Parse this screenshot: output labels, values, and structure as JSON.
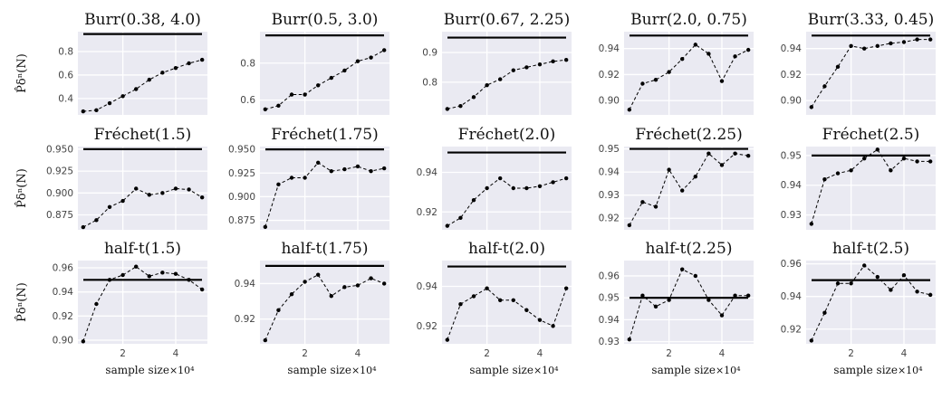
{
  "figure": {
    "ylabels": [
      "P̂δⁿ(N)",
      "P̂δⁿ(N)",
      "P̂δⁿ(N)"
    ],
    "xlabel": "sample size",
    "xscale_note": "×10⁴",
    "colors": {
      "panel_bg": "#eaeaf2",
      "grid": "#ffffff",
      "series": "#000000",
      "reference": "#000000"
    }
  },
  "chart_data": [
    {
      "type": "line",
      "title": "Burr(0.38, 4.0)",
      "reference": 0.95,
      "ylim": [
        0.26,
        0.97
      ],
      "yticks": [
        0.4,
        0.6,
        0.8
      ],
      "yticklabels": [
        "0.4",
        "0.6",
        "0.8"
      ],
      "x": [
        0.5,
        1.0,
        1.5,
        2.0,
        2.5,
        3.0,
        3.5,
        4.0,
        4.5,
        5.0
      ],
      "values": [
        0.29,
        0.3,
        0.36,
        0.42,
        0.48,
        0.56,
        0.62,
        0.66,
        0.7,
        0.73
      ],
      "xlim": [
        0.3,
        5.2
      ],
      "xticks": [
        2,
        4
      ],
      "xticklabels": [],
      "xlabel": "",
      "ylabel_row": 0
    },
    {
      "type": "line",
      "title": "Burr(0.5, 3.0)",
      "reference": 0.95,
      "ylim": [
        0.52,
        0.97
      ],
      "yticks": [
        0.6,
        0.8
      ],
      "yticklabels": [
        "0.6",
        "0.8"
      ],
      "x": [
        0.5,
        1.0,
        1.5,
        2.0,
        2.5,
        3.0,
        3.5,
        4.0,
        4.5,
        5.0
      ],
      "values": [
        0.55,
        0.57,
        0.63,
        0.63,
        0.68,
        0.72,
        0.76,
        0.81,
        0.83,
        0.87
      ],
      "xlim": [
        0.3,
        5.2
      ],
      "xticks": [
        2,
        4
      ],
      "xticklabels": [],
      "xlabel": ""
    },
    {
      "type": "line",
      "title": "Burr(0.67, 2.25)",
      "reference": 0.95,
      "ylim": [
        0.69,
        0.97
      ],
      "yticks": [
        0.8,
        0.9
      ],
      "yticklabels": [
        "0.8",
        "0.9"
      ],
      "x": [
        0.5,
        1.0,
        1.5,
        2.0,
        2.5,
        3.0,
        3.5,
        4.0,
        4.5,
        5.0
      ],
      "values": [
        0.71,
        0.72,
        0.75,
        0.79,
        0.81,
        0.84,
        0.85,
        0.86,
        0.87,
        0.875
      ],
      "xlim": [
        0.3,
        5.2
      ],
      "xticks": [
        2,
        4
      ],
      "xticklabels": [],
      "xlabel": ""
    },
    {
      "type": "line",
      "title": "Burr(2.0, 0.75)",
      "reference": 0.95,
      "ylim": [
        0.889,
        0.953
      ],
      "yticks": [
        0.9,
        0.92,
        0.94
      ],
      "yticklabels": [
        "0.90",
        "0.92",
        "0.94"
      ],
      "x": [
        0.5,
        1.0,
        1.5,
        2.0,
        2.5,
        3.0,
        3.5,
        4.0,
        4.5,
        5.0
      ],
      "values": [
        0.893,
        0.913,
        0.916,
        0.922,
        0.932,
        0.943,
        0.936,
        0.915,
        0.934,
        0.939
      ],
      "xlim": [
        0.3,
        5.2
      ],
      "xticks": [
        2,
        4
      ],
      "xticklabels": [],
      "xlabel": ""
    },
    {
      "type": "line",
      "title": "Burr(3.33, 0.45)",
      "reference": 0.95,
      "ylim": [
        0.889,
        0.953
      ],
      "yticks": [
        0.9,
        0.92,
        0.94
      ],
      "yticklabels": [
        "0.90",
        "0.92",
        "0.94"
      ],
      "x": [
        0.5,
        1.0,
        1.5,
        2.0,
        2.5,
        3.0,
        3.5,
        4.0,
        4.5,
        5.0
      ],
      "values": [
        0.895,
        0.911,
        0.926,
        0.942,
        0.94,
        0.942,
        0.944,
        0.945,
        0.947,
        0.947
      ],
      "xlim": [
        0.3,
        5.2
      ],
      "xticks": [
        2,
        4
      ],
      "xticklabels": [],
      "xlabel": ""
    },
    {
      "type": "line",
      "title": "Fréchet(1.5)",
      "reference": 0.95,
      "ylim": [
        0.858,
        0.953
      ],
      "yticks": [
        0.875,
        0.9,
        0.925,
        0.95
      ],
      "yticklabels": [
        "0.875",
        "0.900",
        "0.925",
        "0.950"
      ],
      "x": [
        0.5,
        1.0,
        1.5,
        2.0,
        2.5,
        3.0,
        3.5,
        4.0,
        4.5,
        5.0
      ],
      "values": [
        0.861,
        0.869,
        0.884,
        0.891,
        0.905,
        0.898,
        0.9,
        0.905,
        0.904,
        0.895
      ],
      "xlim": [
        0.3,
        5.2
      ],
      "xticks": [
        2,
        4
      ],
      "xticklabels": [],
      "xlabel": ""
    },
    {
      "type": "line",
      "title": "Fréchet(1.75)",
      "reference": 0.95,
      "ylim": [
        0.865,
        0.953
      ],
      "yticks": [
        0.875,
        0.9,
        0.925,
        0.95
      ],
      "yticklabels": [
        "0.875",
        "0.900",
        "0.925",
        "0.950"
      ],
      "x": [
        0.5,
        1.0,
        1.5,
        2.0,
        2.5,
        3.0,
        3.5,
        4.0,
        4.5,
        5.0
      ],
      "values": [
        0.868,
        0.913,
        0.92,
        0.92,
        0.936,
        0.927,
        0.929,
        0.932,
        0.927,
        0.93
      ],
      "xlim": [
        0.3,
        5.2
      ],
      "xticks": [
        2,
        4
      ],
      "xticklabels": [],
      "xlabel": ""
    },
    {
      "type": "line",
      "title": "Fréchet(2.0)",
      "reference": 0.95,
      "ylim": [
        0.911,
        0.953
      ],
      "yticks": [
        0.92,
        0.94
      ],
      "yticklabels": [
        "0.92",
        "0.94"
      ],
      "x": [
        0.5,
        1.0,
        1.5,
        2.0,
        2.5,
        3.0,
        3.5,
        4.0,
        4.5,
        5.0
      ],
      "values": [
        0.913,
        0.917,
        0.926,
        0.932,
        0.937,
        0.932,
        0.932,
        0.933,
        0.935,
        0.937
      ],
      "xlim": [
        0.3,
        5.2
      ],
      "xticks": [
        2,
        4
      ],
      "xticklabels": [],
      "xlabel": ""
    },
    {
      "type": "line",
      "title": "Fréchet(2.25)",
      "reference": 0.95,
      "ylim": [
        0.915,
        0.951
      ],
      "yticks": [
        0.92,
        0.93,
        0.94,
        0.95
      ],
      "yticklabels": [
        "0.92",
        "0.93",
        "0.94",
        "0.95"
      ],
      "x": [
        0.5,
        1.0,
        1.5,
        2.0,
        2.5,
        3.0,
        3.5,
        4.0,
        4.5,
        5.0
      ],
      "values": [
        0.917,
        0.927,
        0.925,
        0.941,
        0.932,
        0.938,
        0.948,
        0.943,
        0.948,
        0.947
      ],
      "xlim": [
        0.3,
        5.2
      ],
      "xticks": [
        2,
        4
      ],
      "xticklabels": [],
      "xlabel": ""
    },
    {
      "type": "line",
      "title": "Fréchet(2.5)",
      "reference": 0.95,
      "ylim": [
        0.925,
        0.953
      ],
      "yticks": [
        0.93,
        0.94,
        0.95
      ],
      "yticklabels": [
        "0.93",
        "0.94",
        "0.95"
      ],
      "x": [
        0.5,
        1.0,
        1.5,
        2.0,
        2.5,
        3.0,
        3.5,
        4.0,
        4.5,
        5.0
      ],
      "values": [
        0.927,
        0.942,
        0.944,
        0.945,
        0.949,
        0.952,
        0.945,
        0.949,
        0.948,
        0.948
      ],
      "xlim": [
        0.3,
        5.2
      ],
      "xticks": [
        2,
        4
      ],
      "xticklabels": [],
      "xlabel": ""
    },
    {
      "type": "line",
      "title": "half-t(1.5)",
      "reference": 0.95,
      "ylim": [
        0.897,
        0.966
      ],
      "yticks": [
        0.9,
        0.92,
        0.94,
        0.96
      ],
      "yticklabels": [
        "0.90",
        "0.92",
        "0.94",
        "0.96"
      ],
      "x": [
        0.5,
        1.0,
        1.5,
        2.0,
        2.5,
        3.0,
        3.5,
        4.0,
        4.5,
        5.0
      ],
      "values": [
        0.899,
        0.93,
        0.95,
        0.954,
        0.961,
        0.953,
        0.956,
        0.955,
        0.95,
        0.942
      ],
      "xlim": [
        0.3,
        5.2
      ],
      "xticks": [
        2,
        4
      ],
      "xticklabels": [
        "2",
        "4"
      ],
      "xlabel": "sample size"
    },
    {
      "type": "line",
      "title": "half-t(1.75)",
      "reference": 0.95,
      "ylim": [
        0.906,
        0.953
      ],
      "yticks": [
        0.92,
        0.94
      ],
      "yticklabels": [
        "0.92",
        "0.94"
      ],
      "x": [
        0.5,
        1.0,
        1.5,
        2.0,
        2.5,
        3.0,
        3.5,
        4.0,
        4.5,
        5.0
      ],
      "values": [
        0.908,
        0.925,
        0.934,
        0.941,
        0.945,
        0.933,
        0.938,
        0.939,
        0.943,
        0.94
      ],
      "xlim": [
        0.3,
        5.2
      ],
      "xticks": [
        2,
        4
      ],
      "xticklabels": [
        "2",
        "4"
      ],
      "xlabel": "sample size"
    },
    {
      "type": "line",
      "title": "half-t(2.0)",
      "reference": 0.95,
      "ylim": [
        0.911,
        0.953
      ],
      "yticks": [
        0.92,
        0.94
      ],
      "yticklabels": [
        "0.92",
        "0.94"
      ],
      "x": [
        0.5,
        1.0,
        1.5,
        2.0,
        2.5,
        3.0,
        3.5,
        4.0,
        4.5,
        5.0
      ],
      "values": [
        0.913,
        0.931,
        0.935,
        0.939,
        0.933,
        0.933,
        0.928,
        0.923,
        0.92,
        0.939
      ],
      "xlim": [
        0.3,
        5.2
      ],
      "xticks": [
        2,
        4
      ],
      "xticklabels": [
        "2",
        "4"
      ],
      "xlabel": "sample size"
    },
    {
      "type": "line",
      "title": "half-t(2.25)",
      "reference": 0.95,
      "ylim": [
        0.929,
        0.967
      ],
      "yticks": [
        0.93,
        0.94,
        0.95,
        0.96
      ],
      "yticklabels": [
        "0.93",
        "0.94",
        "0.95",
        "0.96"
      ],
      "x": [
        0.5,
        1.0,
        1.5,
        2.0,
        2.5,
        3.0,
        3.5,
        4.0,
        4.5,
        5.0
      ],
      "values": [
        0.931,
        0.951,
        0.946,
        0.949,
        0.963,
        0.96,
        0.949,
        0.942,
        0.951,
        0.951
      ],
      "xlim": [
        0.3,
        5.2
      ],
      "xticks": [
        2,
        4
      ],
      "xticklabels": [
        "2",
        "4"
      ],
      "xlabel": "sample size"
    },
    {
      "type": "line",
      "title": "half-t(2.5)",
      "reference": 0.95,
      "ylim": [
        0.911,
        0.962
      ],
      "yticks": [
        0.92,
        0.94,
        0.96
      ],
      "yticklabels": [
        "0.92",
        "0.94",
        "0.96"
      ],
      "x": [
        0.5,
        1.0,
        1.5,
        2.0,
        2.5,
        3.0,
        3.5,
        4.0,
        4.5,
        5.0
      ],
      "values": [
        0.913,
        0.93,
        0.948,
        0.948,
        0.959,
        0.952,
        0.944,
        0.953,
        0.943,
        0.941
      ],
      "xlim": [
        0.3,
        5.2
      ],
      "xticks": [
        2,
        4
      ],
      "xticklabels": [
        "2",
        "4"
      ],
      "xlabel": "sample size"
    }
  ]
}
